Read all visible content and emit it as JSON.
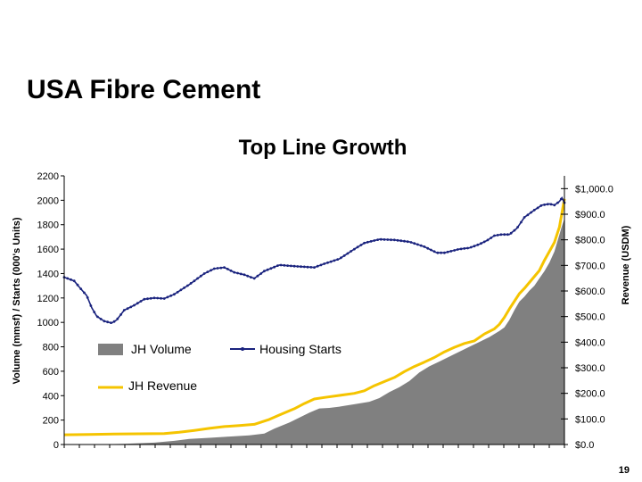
{
  "slide": {
    "title": "USA Fibre Cement",
    "page_number": "19"
  },
  "chart_data": {
    "type": "line",
    "title": "Top Line Growth",
    "y_left_label": "Volume (mmsf)  /  Starts (000's Units)",
    "y_right_label": "Revenue (USDM)",
    "y_left_ticks": [
      "0",
      "200",
      "400",
      "600",
      "800",
      "1000",
      "1200",
      "1400",
      "1600",
      "1800",
      "2000",
      "2200"
    ],
    "y_right_ticks": [
      "$0.0",
      "$100.0",
      "$200.0",
      "$300.0",
      "$400.0",
      "$500.0",
      "$600.0",
      "$700.0",
      "$800.0",
      "$900.0",
      "$1,000.0"
    ],
    "y_left_lim": [
      0,
      2200
    ],
    "y_right_lim": [
      0,
      1050
    ],
    "x_lim": [
      0,
      1
    ],
    "grid": false,
    "legend_placement": "inside-lower-left",
    "colors": {
      "volume": "#808080",
      "starts": "#1a237e",
      "revenue": "#f5c400"
    },
    "series": [
      {
        "name": "JH Volume",
        "kind": "area",
        "axis": "left",
        "points": [
          [
            0.0,
            0
          ],
          [
            0.05,
            0
          ],
          [
            0.12,
            5
          ],
          [
            0.18,
            15
          ],
          [
            0.22,
            30
          ],
          [
            0.25,
            45
          ],
          [
            0.29,
            55
          ],
          [
            0.33,
            65
          ],
          [
            0.37,
            75
          ],
          [
            0.4,
            90
          ],
          [
            0.42,
            130
          ],
          [
            0.45,
            180
          ],
          [
            0.47,
            220
          ],
          [
            0.49,
            260
          ],
          [
            0.51,
            295
          ],
          [
            0.53,
            300
          ],
          [
            0.55,
            310
          ],
          [
            0.58,
            330
          ],
          [
            0.61,
            350
          ],
          [
            0.63,
            380
          ],
          [
            0.65,
            430
          ],
          [
            0.67,
            470
          ],
          [
            0.69,
            520
          ],
          [
            0.71,
            590
          ],
          [
            0.73,
            640
          ],
          [
            0.75,
            680
          ],
          [
            0.77,
            720
          ],
          [
            0.79,
            760
          ],
          [
            0.81,
            800
          ],
          [
            0.83,
            840
          ],
          [
            0.85,
            880
          ],
          [
            0.87,
            930
          ],
          [
            0.88,
            960
          ],
          [
            0.89,
            1020
          ],
          [
            0.9,
            1100
          ],
          [
            0.91,
            1170
          ],
          [
            0.92,
            1210
          ],
          [
            0.93,
            1260
          ],
          [
            0.94,
            1300
          ],
          [
            0.95,
            1360
          ],
          [
            0.96,
            1420
          ],
          [
            0.97,
            1490
          ],
          [
            0.98,
            1580
          ],
          [
            0.985,
            1650
          ],
          [
            0.99,
            1720
          ],
          [
            0.995,
            1790
          ],
          [
            1.0,
            1850
          ]
        ]
      },
      {
        "name": "Housing Starts",
        "kind": "line-markers",
        "axis": "left",
        "points": [
          [
            0.0,
            1370
          ],
          [
            0.02,
            1340
          ],
          [
            0.03,
            1290
          ],
          [
            0.045,
            1220
          ],
          [
            0.055,
            1120
          ],
          [
            0.065,
            1050
          ],
          [
            0.08,
            1010
          ],
          [
            0.095,
            995
          ],
          [
            0.105,
            1020
          ],
          [
            0.12,
            1100
          ],
          [
            0.14,
            1140
          ],
          [
            0.16,
            1190
          ],
          [
            0.18,
            1200
          ],
          [
            0.2,
            1195
          ],
          [
            0.22,
            1230
          ],
          [
            0.25,
            1310
          ],
          [
            0.28,
            1400
          ],
          [
            0.3,
            1440
          ],
          [
            0.32,
            1450
          ],
          [
            0.34,
            1410
          ],
          [
            0.36,
            1390
          ],
          [
            0.38,
            1360
          ],
          [
            0.4,
            1420
          ],
          [
            0.43,
            1470
          ],
          [
            0.46,
            1460
          ],
          [
            0.48,
            1455
          ],
          [
            0.5,
            1450
          ],
          [
            0.52,
            1480
          ],
          [
            0.55,
            1520
          ],
          [
            0.58,
            1600
          ],
          [
            0.6,
            1650
          ],
          [
            0.63,
            1680
          ],
          [
            0.66,
            1675
          ],
          [
            0.69,
            1660
          ],
          [
            0.72,
            1620
          ],
          [
            0.745,
            1570
          ],
          [
            0.76,
            1570
          ],
          [
            0.79,
            1600
          ],
          [
            0.81,
            1610
          ],
          [
            0.83,
            1640
          ],
          [
            0.845,
            1670
          ],
          [
            0.86,
            1710
          ],
          [
            0.875,
            1720
          ],
          [
            0.89,
            1720
          ],
          [
            0.905,
            1770
          ],
          [
            0.92,
            1860
          ],
          [
            0.94,
            1920
          ],
          [
            0.955,
            1960
          ],
          [
            0.97,
            1970
          ],
          [
            0.98,
            1960
          ],
          [
            0.99,
            1990
          ],
          [
            0.995,
            2020
          ],
          [
            1.0,
            1980
          ]
        ],
        "marker_count": 150
      },
      {
        "name": "JH Revenue",
        "kind": "line",
        "axis": "right",
        "points": [
          [
            0.0,
            38
          ],
          [
            0.05,
            39
          ],
          [
            0.1,
            41
          ],
          [
            0.15,
            42
          ],
          [
            0.2,
            43
          ],
          [
            0.23,
            48
          ],
          [
            0.26,
            55
          ],
          [
            0.29,
            63
          ],
          [
            0.32,
            70
          ],
          [
            0.35,
            74
          ],
          [
            0.38,
            79
          ],
          [
            0.41,
            98
          ],
          [
            0.43,
            115
          ],
          [
            0.46,
            140
          ],
          [
            0.48,
            160
          ],
          [
            0.5,
            178
          ],
          [
            0.52,
            184
          ],
          [
            0.55,
            192
          ],
          [
            0.58,
            200
          ],
          [
            0.6,
            210
          ],
          [
            0.62,
            230
          ],
          [
            0.64,
            246
          ],
          [
            0.66,
            262
          ],
          [
            0.68,
            285
          ],
          [
            0.7,
            305
          ],
          [
            0.72,
            322
          ],
          [
            0.74,
            340
          ],
          [
            0.76,
            362
          ],
          [
            0.78,
            380
          ],
          [
            0.8,
            395
          ],
          [
            0.82,
            405
          ],
          [
            0.84,
            432
          ],
          [
            0.86,
            452
          ],
          [
            0.87,
            470
          ],
          [
            0.88,
            497
          ],
          [
            0.89,
            530
          ],
          [
            0.9,
            560
          ],
          [
            0.91,
            590
          ],
          [
            0.92,
            610
          ],
          [
            0.935,
            645
          ],
          [
            0.95,
            680
          ],
          [
            0.96,
            720
          ],
          [
            0.97,
            755
          ],
          [
            0.98,
            790
          ],
          [
            0.99,
            850
          ],
          [
            1.0,
            960
          ]
        ]
      }
    ]
  }
}
